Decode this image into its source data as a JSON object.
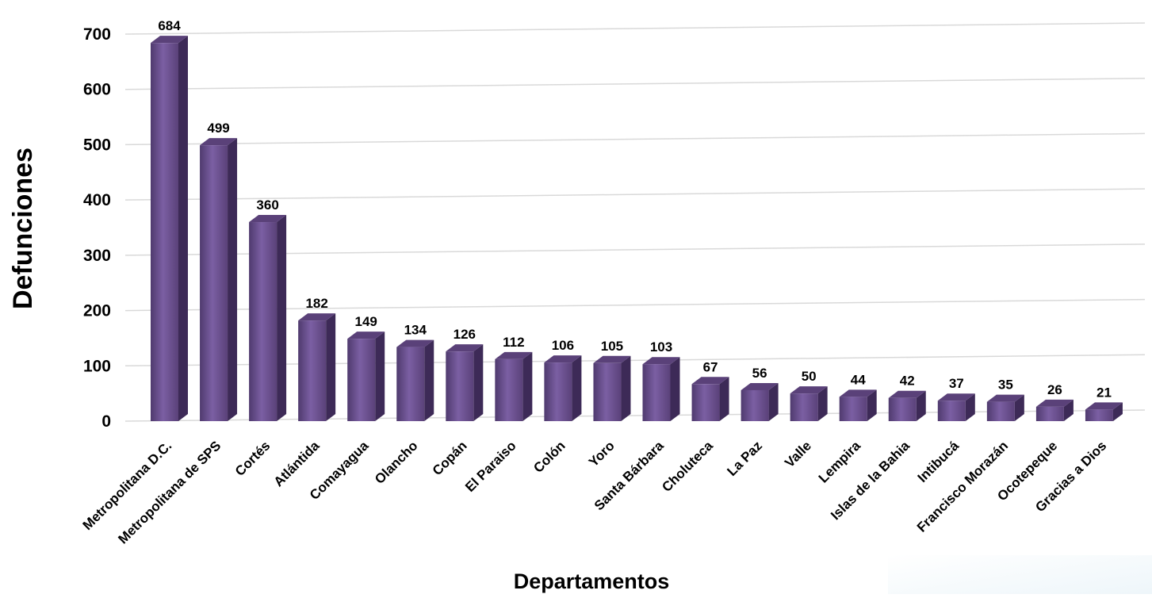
{
  "chart_data": {
    "type": "bar",
    "title": "",
    "xlabel": "Departamentos",
    "ylabel": "Defunciones",
    "ylim": [
      0,
      700
    ],
    "yticks": [
      0,
      100,
      200,
      300,
      400,
      500,
      600,
      700
    ],
    "grid": true,
    "legend": "none",
    "categories": [
      "Metropolitana D.C.",
      "Metropolitana de SPS",
      "Cortés",
      "Atlántida",
      "Comayagua",
      "Olancho",
      "Copán",
      "El Paraiso",
      "Colón",
      "Yoro",
      "Santa Bárbara",
      "Choluteca",
      "La Paz",
      "Valle",
      "Lempira",
      "Islas de la Bahia",
      "Intibucá",
      "Francisco Morazán",
      "Ocotepeque",
      "Gracias a Dios"
    ],
    "values": [
      684,
      499,
      360,
      182,
      149,
      134,
      126,
      112,
      106,
      105,
      103,
      67,
      56,
      50,
      44,
      42,
      37,
      35,
      26,
      21
    ],
    "data_labels": true,
    "colors": {
      "bar_front": "#6a4f8f",
      "bar_side": "#3d2a57",
      "bar_top": "#5a4179",
      "grid": "#d9d9d9"
    }
  }
}
